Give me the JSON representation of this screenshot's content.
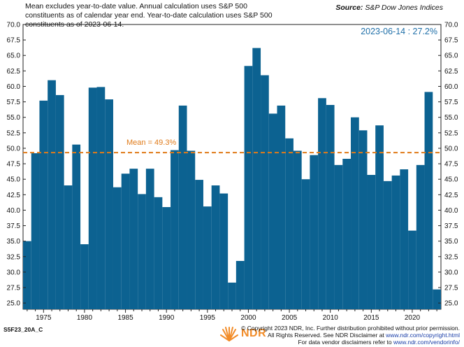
{
  "header": {
    "note": "Mean excludes year-to-date value. Annual calculation uses S&P 500 constituents as of calendar year end. Year-to-date calculation uses S&P 500 constituents as of 2023-06-14.",
    "source_label": "Source:",
    "source_value": "S&P Dow Jones Indices"
  },
  "annotations": {
    "ytd": "2023-06-14 : 27.2%",
    "mean": "Mean = 49.3%"
  },
  "footer": {
    "code": "S5F23_20A_C",
    "logo_text": "NDR",
    "copyright_line1": "© Copyright 2023 NDR, Inc. Further distribution prohibited without prior permission.",
    "copyright_line2_prefix": "All Rights Reserved. See NDR Disclaimer at",
    "copyright_line2_link": "www.ndr.com/copyright.html",
    "copyright_line3_prefix": "For data vendor disclaimers refer to",
    "copyright_line3_link": "www.ndr.com/vendorinfo/"
  },
  "colors": {
    "bar": "#0c6291",
    "mean_line": "#e07b1a",
    "ytd_text": "#1f6fa8",
    "logo": "#f28c28"
  },
  "chart_data": {
    "type": "bar",
    "x": [
      1973,
      1974,
      1975,
      1976,
      1977,
      1978,
      1979,
      1980,
      1981,
      1982,
      1983,
      1984,
      1985,
      1986,
      1987,
      1988,
      1989,
      1990,
      1991,
      1992,
      1993,
      1994,
      1995,
      1996,
      1997,
      1998,
      1999,
      2000,
      2001,
      2002,
      2003,
      2004,
      2005,
      2006,
      2007,
      2008,
      2009,
      2010,
      2011,
      2012,
      2013,
      2014,
      2015,
      2016,
      2017,
      2018,
      2019,
      2020,
      2021,
      2022,
      2023
    ],
    "values": [
      35.0,
      49.2,
      57.7,
      61.0,
      58.6,
      44.0,
      50.6,
      34.5,
      59.8,
      59.9,
      57.9,
      43.7,
      45.9,
      46.7,
      42.6,
      46.7,
      42.1,
      40.5,
      49.7,
      56.9,
      49.6,
      44.9,
      40.6,
      44.0,
      42.7,
      28.3,
      31.8,
      63.3,
      66.2,
      61.8,
      55.6,
      56.9,
      51.6,
      49.6,
      45.0,
      48.9,
      58.1,
      57.0,
      47.3,
      48.3,
      55.0,
      52.9,
      45.7,
      53.7,
      44.7,
      45.6,
      46.6,
      36.7,
      47.3,
      59.1,
      27.2
    ],
    "ytd_index": 50,
    "mean": 49.3,
    "xticks": [
      1975,
      1980,
      1985,
      1990,
      1995,
      2000,
      2005,
      2010,
      2015,
      2020
    ],
    "yticks": [
      "25.0",
      "27.5",
      "30.0",
      "32.5",
      "35.0",
      "37.5",
      "40.0",
      "42.5",
      "45.0",
      "47.5",
      "50.0",
      "52.5",
      "55.0",
      "57.5",
      "60.0",
      "62.5",
      "65.0",
      "67.5",
      "70.0"
    ],
    "ylim": [
      24.0,
      70.0
    ],
    "xlim": [
      1972.5,
      2023.5
    ]
  }
}
